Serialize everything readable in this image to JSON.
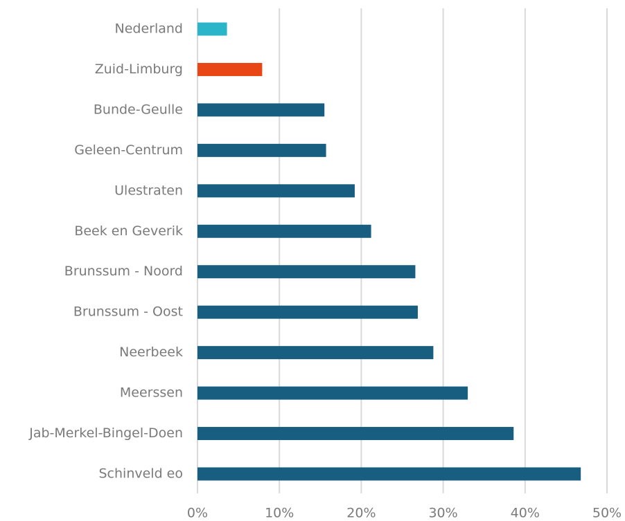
{
  "chart_data": {
    "type": "barh",
    "categories": [
      "Nederland",
      "Zuid-Limburg",
      "Bunde-Geulle",
      "Geleen-Centrum",
      "Ulestraten",
      "Beek en Geverik",
      "Brunssum - Noord",
      "Brunssum - Oost",
      "Neerbeek",
      "Meerssen",
      "Jab-Merkel-Bingel-Doen",
      "Schinveld eo"
    ],
    "values": [
      3.6,
      7.9,
      15.5,
      15.7,
      19.2,
      21.2,
      26.6,
      26.9,
      28.8,
      33.0,
      38.6,
      46.8
    ],
    "colors": [
      "#2bb5c8",
      "#e84614",
      "#175e80",
      "#175e80",
      "#175e80",
      "#175e80",
      "#175e80",
      "#175e80",
      "#175e80",
      "#175e80",
      "#175e80",
      "#175e80"
    ],
    "xlim": [
      0,
      50
    ],
    "xticks": [
      {
        "value": 0,
        "label": "0%"
      },
      {
        "value": 10,
        "label": "10%"
      },
      {
        "value": 20,
        "label": "20%"
      },
      {
        "value": 30,
        "label": "30%"
      },
      {
        "value": 40,
        "label": "40%"
      },
      {
        "value": 50,
        "label": "50%"
      }
    ],
    "grid": true
  }
}
